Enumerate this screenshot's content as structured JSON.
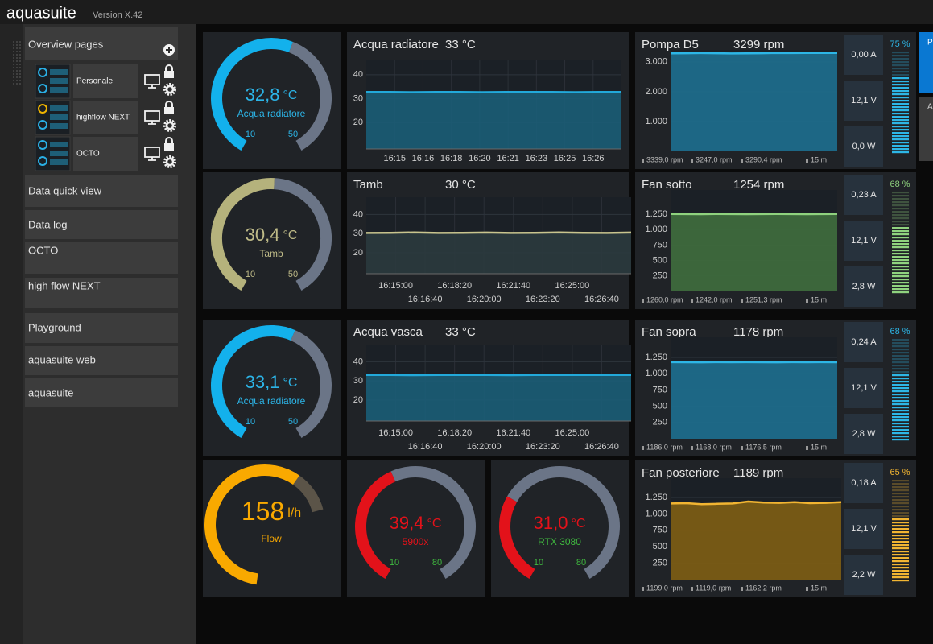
{
  "header": {
    "app": "aquasuite",
    "version": "Version X.42"
  },
  "sidebar": {
    "overview": "Overview pages",
    "pages": [
      "Personale",
      "highflow NEXT",
      "OCTO"
    ],
    "menu": [
      "Data quick view",
      "Data log",
      "OCTO",
      "high flow NEXT",
      "Playground",
      "aquasuite web",
      "aquasuite"
    ]
  },
  "side_buttons": [
    "P",
    "A"
  ],
  "gauges": [
    {
      "value": 32.8,
      "value_label": "32,8",
      "unit": "°C",
      "label": "Acqua radiatore",
      "min": 10,
      "max": 50,
      "color": "#13b1ec",
      "text_color": "#2cb5e8",
      "label_color": "#2cb5e8",
      "range_color": "#2cb5e8"
    },
    {
      "value": 30.4,
      "value_label": "30,4",
      "unit": "°C",
      "label": "Tamb",
      "min": 10,
      "max": 50,
      "color": "#b5b27c",
      "text_color": "#bfbb88",
      "label_color": "#bfbb88",
      "range_color": "#bfbb88"
    },
    {
      "value": 33.1,
      "value_label": "33,1",
      "unit": "°C",
      "label": "Acqua radiatore",
      "min": 10,
      "max": 50,
      "color": "#13b1ec",
      "text_color": "#2cb5e8",
      "label_color": "#2cb5e8",
      "range_color": "#2cb5e8"
    },
    {
      "value": 158,
      "unit": "l/h",
      "label": "Flow",
      "color": "#f9a900",
      "text_color": "#f9a900",
      "label_color": "#f9a900"
    },
    {
      "value": 39.4,
      "value_label": "39,4",
      "unit": "°C",
      "label": "5900x",
      "min": 10,
      "max": 80,
      "color": "#e3121a",
      "text_color": "#e3121a",
      "label_color": "#e3121a",
      "range_color": "#3fb83f"
    },
    {
      "value": 31.0,
      "value_label": "31,0",
      "unit": "°C",
      "label": "RTX 3080",
      "min": 10,
      "max": 80,
      "color": "#e3121a",
      "text_color": "#e3121a",
      "label_color": "#3fb83f",
      "range_color": "#3fb83f"
    }
  ],
  "line_panels": [
    {
      "title": "Acqua radiatore",
      "reading": "33 °C",
      "ylim": [
        9,
        46
      ],
      "yticks": [
        20,
        30,
        40
      ],
      "xticks": [
        "16:15",
        "16:16",
        "16:18",
        "16:20",
        "16:21",
        "16:23",
        "16:25",
        "16:26"
      ],
      "values": [
        32.8,
        32.8,
        32.7,
        32.8,
        32.8,
        32.7,
        32.8,
        32.8,
        32.8,
        32.7,
        32.8,
        32.8
      ],
      "color": "#22a9da",
      "fill": "#1b5d77"
    },
    {
      "title": "Tamb",
      "reading": "30 °C",
      "ylim": [
        9,
        49
      ],
      "yticks": [
        20,
        30,
        40
      ],
      "xticks": [
        "16:15:00",
        "16:16:40",
        "16:18:20",
        "16:20:00",
        "16:21:40",
        "16:23:20",
        "16:25:00",
        "16:26:40"
      ],
      "values": [
        30.3,
        30.4,
        30.6,
        30.3,
        30.4,
        30.5,
        30.3,
        30.4,
        30.6,
        30.4,
        30.3,
        30.5
      ],
      "color": "#c9c58e",
      "fill": "#2b3a3e"
    },
    {
      "title": "Acqua vasca",
      "reading": "33 °C",
      "ylim": [
        9,
        49
      ],
      "yticks": [
        20,
        30,
        40
      ],
      "xticks": [
        "16:15:00",
        "16:16:40",
        "16:18:20",
        "16:20:00",
        "16:21:40",
        "16:23:20",
        "16:25:00",
        "16:26:40"
      ],
      "values": [
        33.1,
        33.1,
        33.0,
        33.1,
        33.1,
        33.1,
        33.0,
        33.1,
        33.1,
        33.1,
        33.1,
        33.1
      ],
      "color": "#22a9da",
      "fill": "#1b5d77"
    }
  ],
  "fan_panels": [
    {
      "title": "Pompa D5",
      "reading": "3299 rpm",
      "ylim": [
        0,
        3400
      ],
      "yticks": [
        {
          "value": 1000,
          "label": "1.000"
        },
        {
          "value": 2000,
          "label": "2.000"
        },
        {
          "value": 3000,
          "label": "3.000"
        }
      ],
      "values": [
        3285,
        3290,
        3295,
        3290,
        3280,
        3285,
        3290,
        3300,
        3295,
        3300,
        3300,
        3300
      ],
      "color": "#2db6e6",
      "fill": "#1d6b8a",
      "stats": [
        "0,00 A",
        "12,1 V",
        "0,0 W"
      ],
      "percent": 75,
      "percent_label": "75 %",
      "percent_color": "#2db6e6",
      "footer": [
        "3339,0 rpm",
        "3247,0 rpm",
        "3290,4 rpm",
        "15 m"
      ]
    },
    {
      "title": "Fan sotto",
      "reading": "1254 rpm",
      "ylim": [
        0,
        1640
      ],
      "yticks": [
        250,
        500,
        750,
        {
          "value": 1000,
          "label": "1.000"
        },
        {
          "value": 1250,
          "label": "1.250"
        }
      ],
      "values": [
        1252,
        1251,
        1250,
        1252,
        1251,
        1250,
        1251,
        1252,
        1251,
        1250,
        1251,
        1252
      ],
      "color": "#8fd27e",
      "fill": "#3e6a3c",
      "stats": [
        "0,23 A",
        "12,1 V",
        "2,8 W"
      ],
      "percent": 68,
      "percent_label": "68 %",
      "percent_color": "#8fd27e",
      "footer": [
        "1260,0 rpm",
        "1242,0 rpm",
        "1251,3 rpm",
        "15 m"
      ]
    },
    {
      "title": "Fan sopra",
      "reading": "1178 rpm",
      "ylim": [
        0,
        1560
      ],
      "yticks": [
        250,
        500,
        750,
        {
          "value": 1000,
          "label": "1.000"
        },
        {
          "value": 1250,
          "label": "1.250"
        }
      ],
      "values": [
        1177,
        1176,
        1175,
        1177,
        1176,
        1177,
        1176,
        1175,
        1177,
        1176,
        1177,
        1176
      ],
      "color": "#2db6e6",
      "fill": "#1d6b8a",
      "stats": [
        "0,24 A",
        "12,1 V",
        "2,8 W"
      ],
      "percent": 68,
      "percent_label": "68 %",
      "percent_color": "#2db6e6",
      "footer": [
        "1186,0 rpm",
        "1168,0 rpm",
        "1176,5 rpm",
        "15 m"
      ]
    },
    {
      "title": "Fan posteriore",
      "reading": "1189 rpm",
      "ylim": [
        0,
        1545
      ],
      "yticks": [
        250,
        500,
        750,
        {
          "value": 1000,
          "label": "1.000"
        },
        {
          "value": 1250,
          "label": "1.250"
        }
      ],
      "values": [
        1160,
        1165,
        1150,
        1155,
        1160,
        1190,
        1175,
        1170,
        1180,
        1165,
        1170,
        1180
      ],
      "color": "#f2b532",
      "fill": "#7a5c14",
      "stats": [
        "0,18 A",
        "12,1 V",
        "2,2 W"
      ],
      "percent": 65,
      "percent_label": "65 %",
      "percent_color": "#f2b532",
      "footer": [
        "1199,0 rpm",
        "1119,0 rpm",
        "1162,2 rpm",
        "15 m"
      ]
    }
  ]
}
